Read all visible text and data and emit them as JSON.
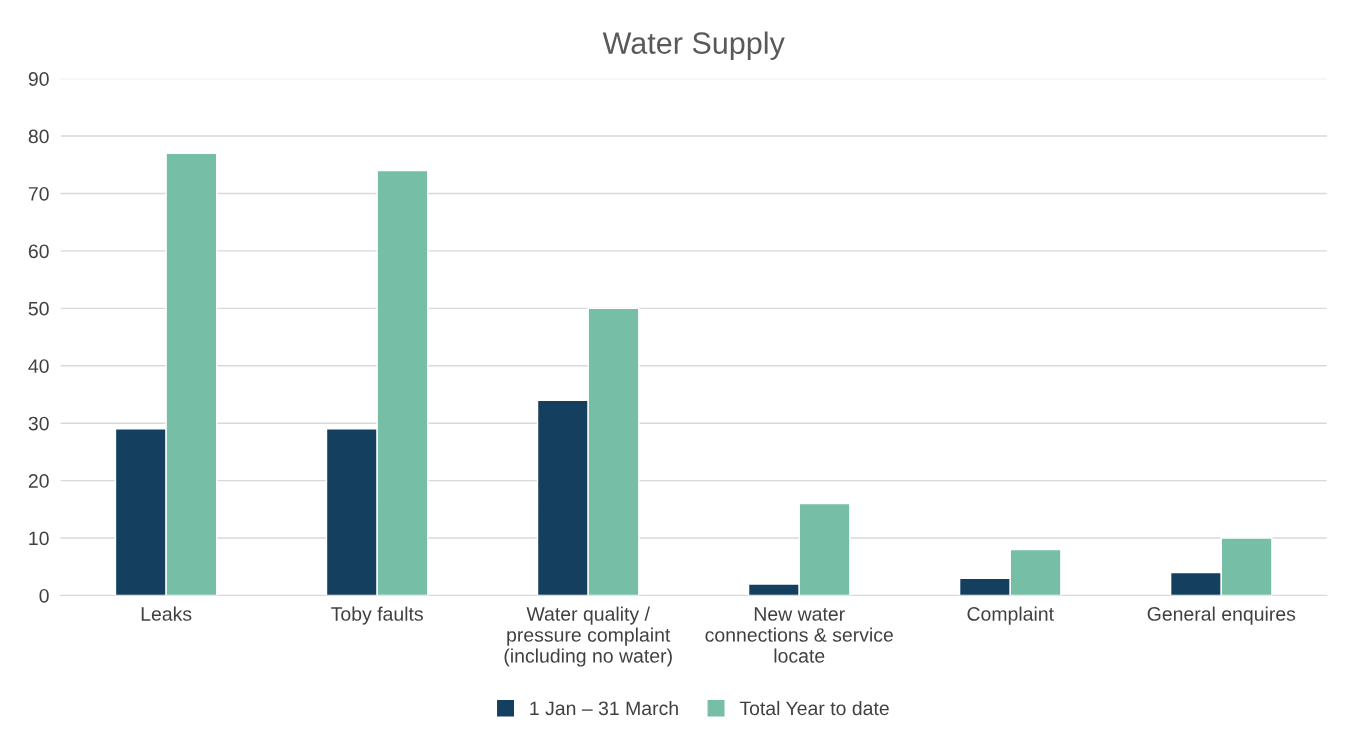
{
  "chart_data": {
    "type": "bar",
    "title": "Water Supply",
    "categories": [
      "Leaks",
      "Toby faults",
      "Water quality /\npressure complaint\n(including no water)",
      "New water\nconnections & service\nlocate",
      "Complaint",
      "General enquires"
    ],
    "series": [
      {
        "name": "1 Jan – 31 March",
        "color": "#143f5f",
        "values": [
          29,
          29,
          34,
          2,
          3,
          4
        ]
      },
      {
        "name": "Total Year to date",
        "color": "#76bea6",
        "values": [
          77,
          74,
          50,
          16,
          8,
          10
        ]
      }
    ],
    "ylim": [
      0,
      90
    ],
    "yticks": [
      0,
      10,
      20,
      30,
      40,
      50,
      60,
      70,
      80,
      90
    ],
    "grid": "y",
    "legend": "bottom"
  }
}
